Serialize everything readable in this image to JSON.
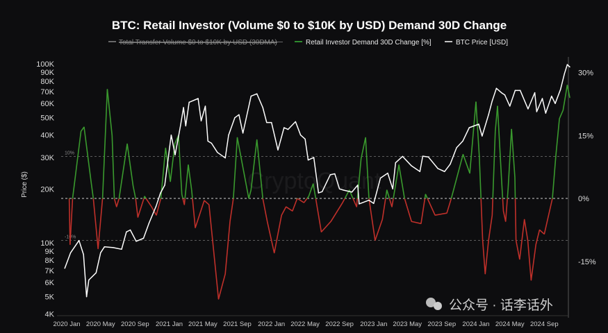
{
  "chart_data": {
    "type": "line",
    "title": "BTC: Retail Investor (Volume $0 to $10K by USD) Demand 30D Change",
    "legend": {
      "placement": "top",
      "items": [
        {
          "label": "Total Transfer Volume $0 to $10K by USD (30DMA)",
          "color": "#888888",
          "hidden": true
        },
        {
          "label": "Retail Investor Demand 30D Change [%]",
          "color": "#2e8b2e",
          "hidden": false
        },
        {
          "label": "BTC Price [USD]",
          "color": "#ffffff",
          "hidden": false
        }
      ]
    },
    "ylabel_left": "Price ($)",
    "left_axis": {
      "scale": "log",
      "range": [
        4000,
        100000
      ],
      "ticks": [
        {
          "v": 100000,
          "label": "100K"
        },
        {
          "v": 90000,
          "label": "90K"
        },
        {
          "v": 80000,
          "label": "80K"
        },
        {
          "v": 70000,
          "label": "70K"
        },
        {
          "v": 60000,
          "label": "60K"
        },
        {
          "v": 50000,
          "label": "50K"
        },
        {
          "v": 40000,
          "label": "40K"
        },
        {
          "v": 30000,
          "label": "30K"
        },
        {
          "v": 20000,
          "label": "20K"
        },
        {
          "v": 10000,
          "label": "10K"
        },
        {
          "v": 9000,
          "label": "9K"
        },
        {
          "v": 8000,
          "label": "8K"
        },
        {
          "v": 7000,
          "label": "7K"
        },
        {
          "v": 6000,
          "label": "6K"
        },
        {
          "v": 5000,
          "label": "5K"
        },
        {
          "v": 4000,
          "label": "4K"
        }
      ]
    },
    "right_axis": {
      "scale": "linear",
      "unit": "%",
      "ticks": [
        {
          "v": 30,
          "label": "30%"
        },
        {
          "v": 15,
          "label": "15%"
        },
        {
          "v": 0,
          "label": "0%"
        },
        {
          "v": -15,
          "label": "-15%"
        }
      ]
    },
    "reference_lines": [
      {
        "v": 10,
        "label": "10%"
      },
      {
        "v": 0,
        "label": ""
      },
      {
        "v": -10,
        "label": "-10%"
      }
    ],
    "x_ticks": [
      {
        "date": "2020-01-01",
        "label": "2020 Jan"
      },
      {
        "date": "2020-05-01",
        "label": "2020 May"
      },
      {
        "date": "2020-09-01",
        "label": "2020 Sep"
      },
      {
        "date": "2021-01-01",
        "label": "2021 Jan"
      },
      {
        "date": "2021-05-01",
        "label": "2021 May"
      },
      {
        "date": "2021-09-01",
        "label": "2021 Sep"
      },
      {
        "date": "2022-01-01",
        "label": "2022 Jan"
      },
      {
        "date": "2022-05-01",
        "label": "2022 May"
      },
      {
        "date": "2022-09-01",
        "label": "2022 Sep"
      },
      {
        "date": "2023-01-01",
        "label": "2023 Jan"
      },
      {
        "date": "2023-05-01",
        "label": "2023 May"
      },
      {
        "date": "2023-09-01",
        "label": "2023 Sep"
      },
      {
        "date": "2024-01-01",
        "label": "2024 Jan"
      },
      {
        "date": "2024-05-01",
        "label": "2024 May"
      },
      {
        "date": "2024-09-01",
        "label": "2024 Sep"
      }
    ],
    "colors": {
      "positive": "#3a9a2e",
      "negative": "#c0302a",
      "price": "#ffffff"
    },
    "grid": false,
    "series": [
      {
        "name": "BTC Price [USD]",
        "axis": "left",
        "points": [
          [
            "2019-12-25",
            7200
          ],
          [
            "2020-01-15",
            8800
          ],
          [
            "2020-02-14",
            10300
          ],
          [
            "2020-03-01",
            8600
          ],
          [
            "2020-03-12",
            5000
          ],
          [
            "2020-03-20",
            6200
          ],
          [
            "2020-04-15",
            6800
          ],
          [
            "2020-05-01",
            8800
          ],
          [
            "2020-05-15",
            9500
          ],
          [
            "2020-06-15",
            9400
          ],
          [
            "2020-07-15",
            9200
          ],
          [
            "2020-08-01",
            11500
          ],
          [
            "2020-08-15",
            11800
          ],
          [
            "2020-09-05",
            10200
          ],
          [
            "2020-10-01",
            10600
          ],
          [
            "2020-10-21",
            12900
          ],
          [
            "2020-11-15",
            16000
          ],
          [
            "2020-12-01",
            19000
          ],
          [
            "2020-12-16",
            21000
          ],
          [
            "2021-01-08",
            40000
          ],
          [
            "2021-01-22",
            31000
          ],
          [
            "2021-02-10",
            45000
          ],
          [
            "2021-02-21",
            57000
          ],
          [
            "2021-03-01",
            45000
          ],
          [
            "2021-03-13",
            61000
          ],
          [
            "2021-04-14",
            64000
          ],
          [
            "2021-04-25",
            48000
          ],
          [
            "2021-05-10",
            58000
          ],
          [
            "2021-05-19",
            37000
          ],
          [
            "2021-06-01",
            36000
          ],
          [
            "2021-06-22",
            32000
          ],
          [
            "2021-07-20",
            29800
          ],
          [
            "2021-08-01",
            40000
          ],
          [
            "2021-08-23",
            50000
          ],
          [
            "2021-09-07",
            52000
          ],
          [
            "2021-09-21",
            41000
          ],
          [
            "2021-10-20",
            66000
          ],
          [
            "2021-11-10",
            68000
          ],
          [
            "2021-12-01",
            57000
          ],
          [
            "2021-12-15",
            47000
          ],
          [
            "2022-01-01",
            47000
          ],
          [
            "2022-01-24",
            33000
          ],
          [
            "2022-02-15",
            44000
          ],
          [
            "2022-03-01",
            43000
          ],
          [
            "2022-03-28",
            47500
          ],
          [
            "2022-04-15",
            40000
          ],
          [
            "2022-05-01",
            38000
          ],
          [
            "2022-05-12",
            29000
          ],
          [
            "2022-06-01",
            30000
          ],
          [
            "2022-06-18",
            19000
          ],
          [
            "2022-07-01",
            19300
          ],
          [
            "2022-07-30",
            24000
          ],
          [
            "2022-08-15",
            24300
          ],
          [
            "2022-09-01",
            20000
          ],
          [
            "2022-09-15",
            19700
          ],
          [
            "2022-10-15",
            19200
          ],
          [
            "2022-11-05",
            21000
          ],
          [
            "2022-11-10",
            16500
          ],
          [
            "2022-12-15",
            17300
          ],
          [
            "2023-01-01",
            16600
          ],
          [
            "2023-01-25",
            23000
          ],
          [
            "2023-02-20",
            24500
          ],
          [
            "2023-03-10",
            20000
          ],
          [
            "2023-03-20",
            28000
          ],
          [
            "2023-04-14",
            30400
          ],
          [
            "2023-05-15",
            27000
          ],
          [
            "2023-06-15",
            25000
          ],
          [
            "2023-06-25",
            30500
          ],
          [
            "2023-07-15",
            30200
          ],
          [
            "2023-08-18",
            26000
          ],
          [
            "2023-09-11",
            25000
          ],
          [
            "2023-10-01",
            27500
          ],
          [
            "2023-10-24",
            34000
          ],
          [
            "2023-11-15",
            37000
          ],
          [
            "2023-12-08",
            44000
          ],
          [
            "2024-01-11",
            46000
          ],
          [
            "2024-01-23",
            39500
          ],
          [
            "2024-02-15",
            52000
          ],
          [
            "2024-02-28",
            62000
          ],
          [
            "2024-03-14",
            73000
          ],
          [
            "2024-04-01",
            69000
          ],
          [
            "2024-04-13",
            67000
          ],
          [
            "2024-05-01",
            58000
          ],
          [
            "2024-05-20",
            71000
          ],
          [
            "2024-06-07",
            71000
          ],
          [
            "2024-07-05",
            56000
          ],
          [
            "2024-07-29",
            69000
          ],
          [
            "2024-08-05",
            54000
          ],
          [
            "2024-08-25",
            64000
          ],
          [
            "2024-09-06",
            53000
          ],
          [
            "2024-09-27",
            66000
          ],
          [
            "2024-10-10",
            60000
          ],
          [
            "2024-10-29",
            72000
          ],
          [
            "2024-11-12",
            88000
          ],
          [
            "2024-11-22",
            99000
          ],
          [
            "2024-12-01",
            96000
          ]
        ]
      },
      {
        "name": "Retail Investor Demand 30D Change [%]",
        "axis": "right",
        "points": [
          [
            "2020-01-10",
            0
          ],
          [
            "2020-01-13",
            -11
          ],
          [
            "2020-01-22",
            0
          ],
          [
            "2020-02-21",
            16
          ],
          [
            "2020-03-03",
            17
          ],
          [
            "2020-03-28",
            4
          ],
          [
            "2020-04-05",
            0
          ],
          [
            "2020-04-22",
            -12
          ],
          [
            "2020-05-08",
            0
          ],
          [
            "2020-05-25",
            26
          ],
          [
            "2020-06-11",
            15
          ],
          [
            "2020-06-19",
            0
          ],
          [
            "2020-06-27",
            -2
          ],
          [
            "2020-07-06",
            0
          ],
          [
            "2020-08-04",
            13
          ],
          [
            "2020-08-25",
            3
          ],
          [
            "2020-09-03",
            0
          ],
          [
            "2020-09-11",
            -4.5
          ],
          [
            "2020-10-05",
            0.5
          ],
          [
            "2020-10-30",
            -2
          ],
          [
            "2020-11-16",
            -4
          ],
          [
            "2020-12-02",
            0
          ],
          [
            "2020-12-19",
            12
          ],
          [
            "2021-01-05",
            4
          ],
          [
            "2021-01-21",
            13
          ],
          [
            "2021-02-03",
            15
          ],
          [
            "2021-02-15",
            1
          ],
          [
            "2021-02-24",
            -1.5
          ],
          [
            "2021-03-10",
            8
          ],
          [
            "2021-03-22",
            2
          ],
          [
            "2021-04-04",
            -7
          ],
          [
            "2021-05-06",
            -0.5
          ],
          [
            "2021-05-23",
            -1.5
          ],
          [
            "2021-06-26",
            -24
          ],
          [
            "2021-07-20",
            -18
          ],
          [
            "2021-08-06",
            -5.5
          ],
          [
            "2021-08-18",
            0
          ],
          [
            "2021-09-01",
            14.5
          ],
          [
            "2021-09-25",
            6
          ],
          [
            "2021-10-12",
            0
          ],
          [
            "2021-10-20",
            2
          ],
          [
            "2021-11-10",
            14
          ],
          [
            "2021-12-01",
            0
          ],
          [
            "2021-12-17",
            -5.5
          ],
          [
            "2022-01-11",
            -13
          ],
          [
            "2022-02-06",
            -4
          ],
          [
            "2022-02-22",
            -2
          ],
          [
            "2022-03-17",
            -3
          ],
          [
            "2022-04-03",
            0
          ],
          [
            "2022-04-27",
            -1
          ],
          [
            "2022-05-14",
            0.5
          ],
          [
            "2022-05-30",
            3.5
          ],
          [
            "2022-06-08",
            0
          ],
          [
            "2022-06-28",
            -8
          ],
          [
            "2022-08-01",
            -5.5
          ],
          [
            "2022-09-12",
            -1
          ],
          [
            "2022-10-06",
            2
          ],
          [
            "2022-11-01",
            -2
          ],
          [
            "2022-11-17",
            9.5
          ],
          [
            "2022-12-03",
            14.5
          ],
          [
            "2022-12-15",
            0
          ],
          [
            "2023-01-06",
            -10
          ],
          [
            "2023-02-01",
            -5
          ],
          [
            "2023-02-17",
            2
          ],
          [
            "2023-03-07",
            -2
          ],
          [
            "2023-04-01",
            8
          ],
          [
            "2023-04-21",
            0
          ],
          [
            "2023-05-16",
            -5.5
          ],
          [
            "2023-06-19",
            -6
          ],
          [
            "2023-07-05",
            1
          ],
          [
            "2023-08-08",
            -4
          ],
          [
            "2023-09-19",
            -3.5
          ],
          [
            "2023-10-05",
            0
          ],
          [
            "2023-11-16",
            10.5
          ],
          [
            "2023-12-10",
            6
          ],
          [
            "2024-01-01",
            23
          ],
          [
            "2024-01-13",
            10
          ],
          [
            "2024-01-25",
            -10
          ],
          [
            "2024-02-03",
            -18
          ],
          [
            "2024-02-15",
            -10
          ],
          [
            "2024-02-28",
            -4
          ],
          [
            "2024-03-10",
            16
          ],
          [
            "2024-03-18",
            22
          ],
          [
            "2024-04-01",
            5
          ],
          [
            "2024-04-08",
            -3
          ],
          [
            "2024-04-16",
            -5.5
          ],
          [
            "2024-04-25",
            2.5
          ],
          [
            "2024-05-07",
            16.5
          ],
          [
            "2024-05-19",
            5
          ],
          [
            "2024-05-23",
            -10
          ],
          [
            "2024-06-05",
            -14.5
          ],
          [
            "2024-06-22",
            -5
          ],
          [
            "2024-07-04",
            -10
          ],
          [
            "2024-07-16",
            -19.5
          ],
          [
            "2024-08-02",
            -11
          ],
          [
            "2024-08-15",
            -7.5
          ],
          [
            "2024-09-01",
            -8.5
          ],
          [
            "2024-09-30",
            0
          ],
          [
            "2024-10-12",
            10
          ],
          [
            "2024-10-25",
            19
          ],
          [
            "2024-11-07",
            21
          ],
          [
            "2024-11-22",
            27
          ],
          [
            "2024-12-01",
            24
          ]
        ]
      }
    ]
  },
  "watermarks": {
    "center": "CryptoQuant",
    "corner": "公众号 · 话李话外"
  }
}
